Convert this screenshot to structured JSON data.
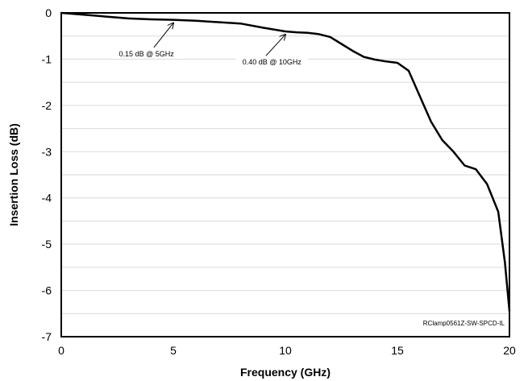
{
  "chart_data": {
    "type": "line",
    "title": "",
    "xlabel": "Frequency (GHz)",
    "ylabel": "Insertion Loss (dB)",
    "xlim": [
      0,
      20
    ],
    "ylim": [
      -7,
      0
    ],
    "x_ticks": [
      "0",
      "5",
      "10",
      "15",
      "20"
    ],
    "y_ticks": [
      "0",
      "-1",
      "-2",
      "-3",
      "-4",
      "-5",
      "-6",
      "-7"
    ],
    "grid": "horizontal, every 0.5 dB",
    "legend": "none",
    "series": [
      {
        "color": "#000000",
        "x": [
          0,
          1,
          2,
          3,
          4,
          5,
          6,
          7,
          8,
          9,
          10,
          10.5,
          11,
          11.5,
          12,
          12.5,
          13,
          13.5,
          14,
          14.5,
          15,
          15.5,
          16,
          16.5,
          17,
          17.5,
          18,
          18.5,
          19,
          19.5,
          19.8,
          20
        ],
        "y": [
          0,
          -0.04,
          -0.08,
          -0.12,
          -0.14,
          -0.15,
          -0.17,
          -0.2,
          -0.23,
          -0.32,
          -0.4,
          -0.42,
          -0.43,
          -0.46,
          -0.52,
          -0.67,
          -0.82,
          -0.95,
          -1.01,
          -1.05,
          -1.08,
          -1.25,
          -1.8,
          -2.35,
          -2.75,
          -3.0,
          -3.3,
          -3.38,
          -3.7,
          -4.3,
          -5.4,
          -6.45
        ]
      }
    ],
    "annotations": [
      {
        "text": "0.15 dB @ 5GHz",
        "x": 5,
        "y": -0.15,
        "label_x": 3.8,
        "label_y": -0.92
      },
      {
        "text": "0.40 dB @ 10GHz",
        "x": 10,
        "y": -0.4,
        "label_x": 9.4,
        "label_y": -1.1
      }
    ],
    "footnote": "RClamp0561Z-SW-SPCD-IL"
  }
}
